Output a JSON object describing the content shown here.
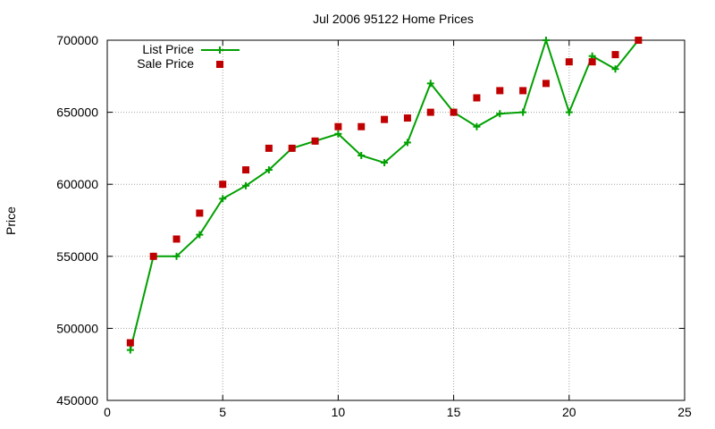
{
  "chart_data": {
    "type": "line",
    "title": "Jul 2006 95122 Home Prices",
    "xlabel": "",
    "ylabel": "Price",
    "xlim": [
      0,
      25
    ],
    "ylim": [
      450000,
      700000
    ],
    "x_ticks": [
      "0",
      "5",
      "10",
      "15",
      "20",
      "25"
    ],
    "y_ticks": [
      "450000",
      "500000",
      "550000",
      "600000",
      "650000",
      "700000"
    ],
    "grid": true,
    "legend_position": "top-left",
    "series": [
      {
        "name": "List Price",
        "kind": "line-points",
        "color": "#00a000",
        "marker": "plus",
        "x": [
          1,
          2,
          3,
          4,
          5,
          6,
          7,
          8,
          9,
          10,
          11,
          12,
          13,
          14,
          15,
          16,
          17,
          18,
          19,
          20,
          21,
          22,
          23
        ],
        "values": [
          485000,
          550000,
          550000,
          565000,
          590000,
          599000,
          610000,
          625000,
          630000,
          635000,
          620000,
          615000,
          629000,
          670000,
          650000,
          640000,
          649000,
          650000,
          700000,
          650000,
          689000,
          680000,
          700000
        ]
      },
      {
        "name": "Sale Price",
        "kind": "points",
        "color": "#c00000",
        "marker": "square",
        "x": [
          1,
          2,
          3,
          4,
          5,
          6,
          7,
          8,
          9,
          10,
          11,
          12,
          13,
          14,
          15,
          16,
          17,
          18,
          19,
          20,
          21,
          22,
          23
        ],
        "values": [
          490000,
          550000,
          562000,
          580000,
          600000,
          610000,
          625000,
          625000,
          630000,
          640000,
          640000,
          645000,
          646000,
          650000,
          650000,
          660000,
          665000,
          665000,
          670000,
          685000,
          685000,
          690000,
          700000
        ]
      }
    ]
  }
}
